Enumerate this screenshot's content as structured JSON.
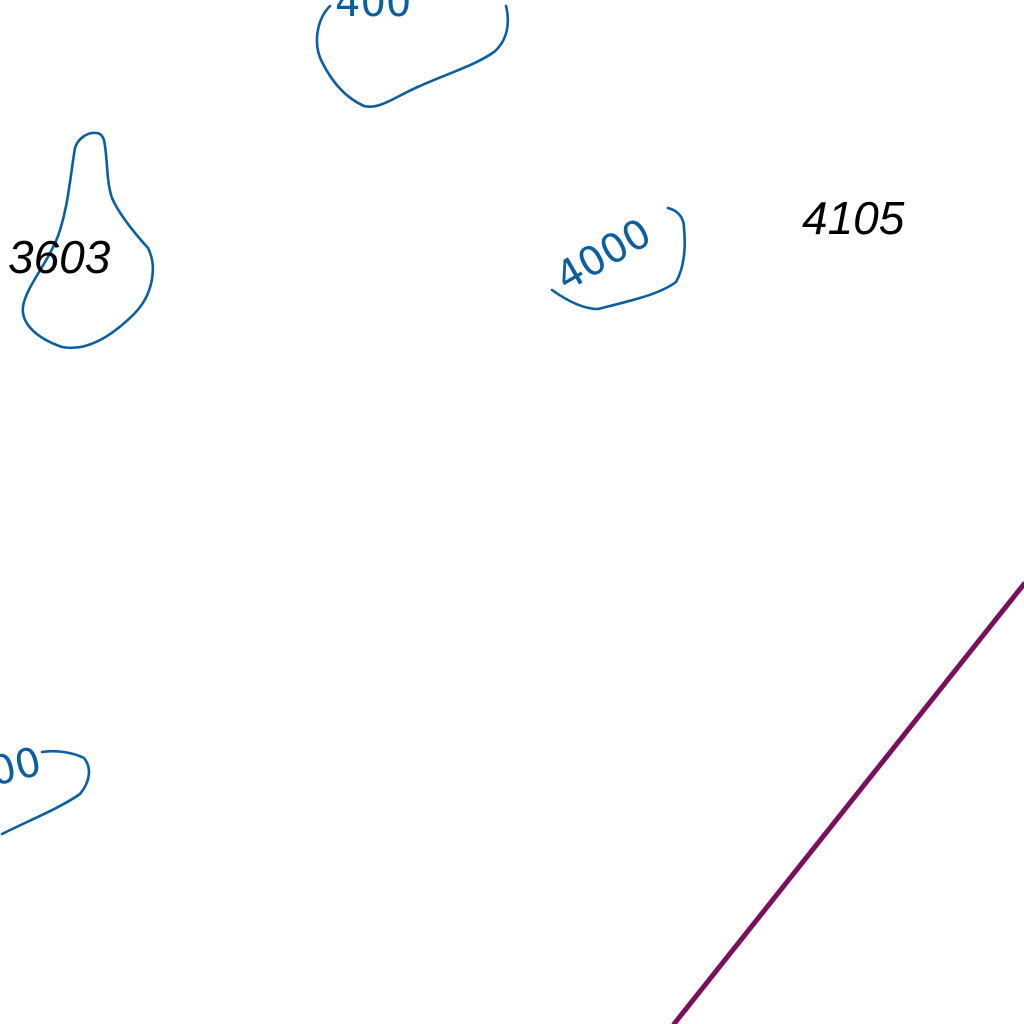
{
  "map": {
    "colors": {
      "background": "#ffffff",
      "contour": "#0b5fa0",
      "spot_height": "#000000",
      "boundary": "#7a0f5c"
    },
    "contour_labels": {
      "top": "400",
      "center": "4000",
      "bottom_left": "00"
    },
    "spot_heights": {
      "left": "3603",
      "right": "4105"
    }
  }
}
